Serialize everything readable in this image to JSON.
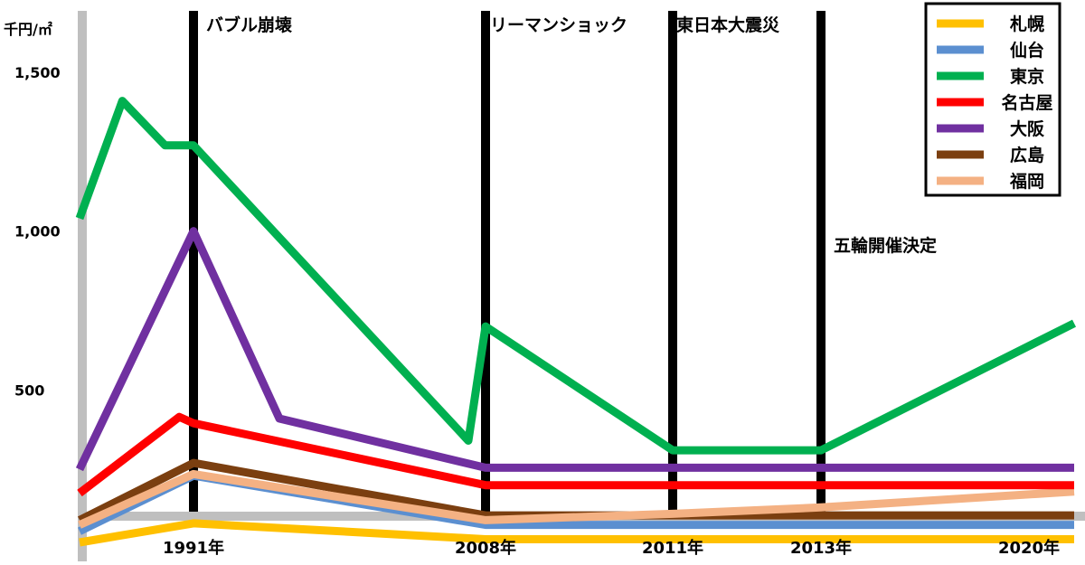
{
  "chart_data": {
    "type": "line",
    "ylabel": "千円/㎡",
    "y_ticks": [
      {
        "label": "1,500",
        "value": 1500
      },
      {
        "label": "1,000",
        "value": 1000
      },
      {
        "label": "500",
        "value": 500
      }
    ],
    "x_ticks": [
      {
        "label": "1991年",
        "year": 1991
      },
      {
        "label": "2008年",
        "year": 2008
      },
      {
        "label": "2011年",
        "year": 2011
      },
      {
        "label": "2013年",
        "year": 2013
      },
      {
        "label": "2020年",
        "year": 2020
      }
    ],
    "events": [
      {
        "label": "バブル崩壊",
        "year": 1991
      },
      {
        "label": "リーマンショック",
        "year": 2008
      },
      {
        "label": "東日本大震災",
        "year": 2011
      },
      {
        "label": "五輪開催決定",
        "year": 2013
      }
    ],
    "ylim": [
      0,
      1500
    ],
    "xlim": [
      1983,
      2020.3
    ],
    "legend_position": "top-right",
    "series": [
      {
        "name": "札幌",
        "color": "#ffc000",
        "points": [
          [
            1983,
            20
          ],
          [
            1991,
            80
          ],
          [
            2008,
            30
          ],
          [
            2011,
            30
          ],
          [
            2013,
            30
          ],
          [
            2020,
            30
          ]
        ]
      },
      {
        "name": "仙台",
        "color": "#5b8fd0",
        "points": [
          [
            1983,
            55
          ],
          [
            1991,
            230
          ],
          [
            2008,
            75
          ],
          [
            2011,
            75
          ],
          [
            2013,
            75
          ],
          [
            2020,
            75
          ]
        ]
      },
      {
        "name": "東京",
        "color": "#00b050",
        "points": [
          [
            1983,
            1040
          ],
          [
            1986,
            1410
          ],
          [
            1989,
            1270
          ],
          [
            1991,
            1270
          ],
          [
            2007,
            340
          ],
          [
            2008,
            700
          ],
          [
            2011,
            310
          ],
          [
            2013,
            310
          ],
          [
            2020,
            710
          ]
        ]
      },
      {
        "name": "名古屋",
        "color": "#ff0000",
        "points": [
          [
            1983,
            175
          ],
          [
            1990,
            415
          ],
          [
            1991,
            395
          ],
          [
            2008,
            200
          ],
          [
            2011,
            200
          ],
          [
            2013,
            200
          ],
          [
            2020,
            200
          ]
        ]
      },
      {
        "name": "大阪",
        "color": "#7030a0",
        "points": [
          [
            1983,
            250
          ],
          [
            1991,
            1000
          ],
          [
            1996,
            410
          ],
          [
            2008,
            255
          ],
          [
            2011,
            255
          ],
          [
            2013,
            255
          ],
          [
            2020,
            255
          ]
        ]
      },
      {
        "name": "広島",
        "color": "#7b3f10",
        "points": [
          [
            1983,
            90
          ],
          [
            1991,
            270
          ],
          [
            2008,
            105
          ],
          [
            2011,
            105
          ],
          [
            2013,
            105
          ],
          [
            2020,
            105
          ]
        ]
      },
      {
        "name": "福岡",
        "color": "#f4b183",
        "points": [
          [
            1983,
            75
          ],
          [
            1991,
            235
          ],
          [
            2008,
            90
          ],
          [
            2011,
            110
          ],
          [
            2013,
            130
          ],
          [
            2020,
            180
          ]
        ]
      }
    ]
  }
}
